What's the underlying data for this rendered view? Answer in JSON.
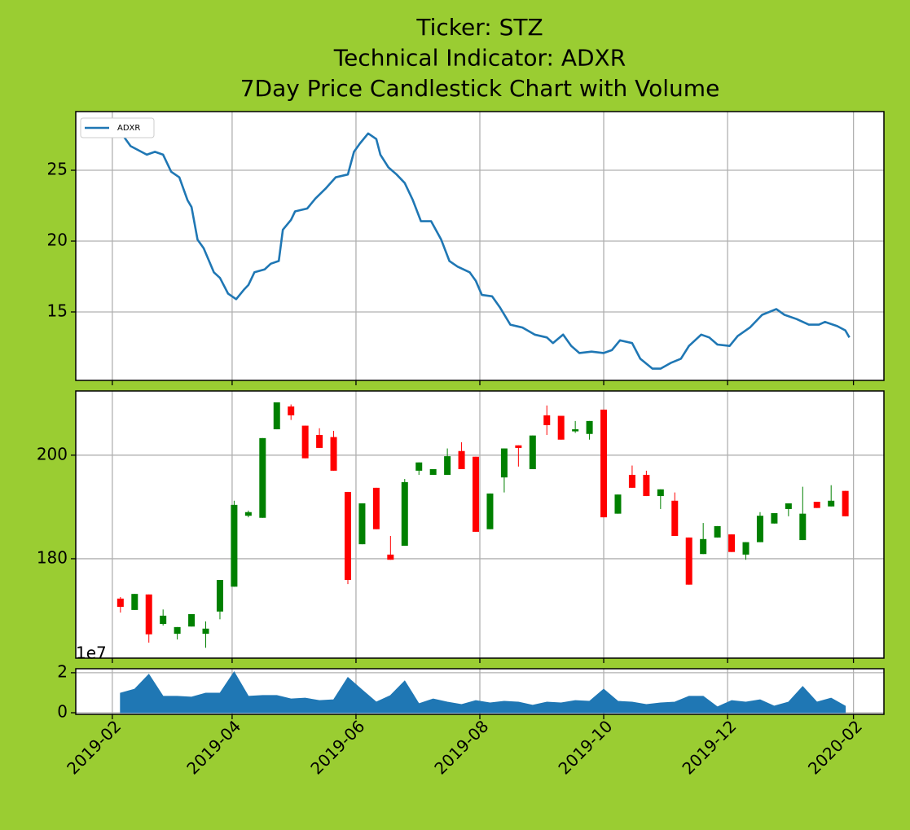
{
  "chart_data": [
    {
      "type": "line",
      "title": [
        "Ticker: STZ",
        "Technical Indicator: ADXR",
        "7Day Price Candlestick Chart with Volume"
      ],
      "x": [
        "2019-02-02",
        "2019-02-10",
        "2019-02-18",
        "2019-02-22",
        "2019-02-26",
        "2019-03-02",
        "2019-03-06",
        "2019-03-10",
        "2019-03-12",
        "2019-03-15",
        "2019-03-18",
        "2019-03-23",
        "2019-03-26",
        "2019-03-30",
        "2019-04-03",
        "2019-04-07",
        "2019-04-09",
        "2019-04-12",
        "2019-04-17",
        "2019-04-20",
        "2019-04-24",
        "2019-04-26",
        "2019-04-30",
        "2019-05-02",
        "2019-05-08",
        "2019-05-12",
        "2019-05-17",
        "2019-05-22",
        "2019-05-28",
        "2019-05-31",
        "2019-06-03",
        "2019-06-07",
        "2019-06-11",
        "2019-06-13",
        "2019-06-17",
        "2019-06-21",
        "2019-06-25",
        "2019-06-29",
        "2019-07-03",
        "2019-07-08",
        "2019-07-13",
        "2019-07-17",
        "2019-07-21",
        "2019-07-27",
        "2019-07-30",
        "2019-08-02",
        "2019-08-07",
        "2019-08-11",
        "2019-08-16",
        "2019-08-22",
        "2019-08-28",
        "2019-09-03",
        "2019-09-06",
        "2019-09-11",
        "2019-09-15",
        "2019-09-19",
        "2019-09-25",
        "2019-10-01",
        "2019-10-05",
        "2019-10-09",
        "2019-10-15",
        "2019-10-19",
        "2019-10-25",
        "2019-10-29",
        "2019-11-03",
        "2019-11-08",
        "2019-11-12",
        "2019-11-18",
        "2019-11-22",
        "2019-11-26",
        "2019-12-02",
        "2019-12-06",
        "2019-12-12",
        "2019-12-18",
        "2019-12-25",
        "2019-12-29",
        "2020-01-04",
        "2020-01-10",
        "2020-01-15",
        "2020-01-18",
        "2020-01-24",
        "2020-01-28",
        "2020-01-30"
      ],
      "series": [
        {
          "name": "ADXR",
          "color": "#1f77b4",
          "values": [
            28.3,
            26.7,
            26.1,
            26.3,
            26.1,
            24.9,
            24.5,
            22.9,
            22.4,
            20.1,
            19.5,
            17.8,
            17.4,
            16.3,
            15.9,
            16.6,
            16.9,
            17.8,
            18.0,
            18.4,
            18.6,
            20.8,
            21.5,
            22.1,
            22.3,
            23.0,
            23.7,
            24.5,
            24.7,
            26.3,
            26.9,
            27.6,
            27.2,
            26.1,
            25.2,
            24.7,
            24.1,
            22.9,
            21.4,
            21.4,
            20.1,
            18.6,
            18.2,
            17.8,
            17.2,
            16.2,
            16.1,
            15.3,
            14.1,
            13.9,
            13.4,
            13.2,
            12.8,
            13.4,
            12.6,
            12.1,
            12.2,
            12.1,
            12.3,
            13.0,
            12.8,
            11.7,
            11.0,
            11.0,
            11.4,
            11.7,
            12.6,
            13.4,
            13.2,
            12.7,
            12.6,
            13.3,
            13.9,
            14.8,
            15.2,
            14.8,
            14.5,
            14.1,
            14.1,
            14.3,
            14.0,
            13.7,
            13.2
          ]
        }
      ],
      "xlim": [
        "2019-01-14",
        "2020-02-16"
      ],
      "ylim": [
        10.17,
        29.14
      ],
      "yticks": [
        15,
        20,
        25
      ],
      "grid": true,
      "legend": "upper left"
    },
    {
      "type": "candlestick",
      "x": [
        "2019-02-05",
        "2019-02-12",
        "2019-02-19",
        "2019-02-26",
        "2019-03-05",
        "2019-03-12",
        "2019-03-19",
        "2019-03-26",
        "2019-04-02",
        "2019-04-09",
        "2019-04-16",
        "2019-04-23",
        "2019-04-30",
        "2019-05-07",
        "2019-05-14",
        "2019-05-21",
        "2019-05-28",
        "2019-06-04",
        "2019-06-11",
        "2019-06-18",
        "2019-06-25",
        "2019-07-02",
        "2019-07-09",
        "2019-07-16",
        "2019-07-23",
        "2019-07-30",
        "2019-08-06",
        "2019-08-13",
        "2019-08-20",
        "2019-08-27",
        "2019-09-03",
        "2019-09-10",
        "2019-09-17",
        "2019-09-24",
        "2019-10-01",
        "2019-10-08",
        "2019-10-15",
        "2019-10-22",
        "2019-10-29",
        "2019-11-05",
        "2019-11-12",
        "2019-11-19",
        "2019-11-26",
        "2019-12-03",
        "2019-12-10",
        "2019-12-17",
        "2019-12-24",
        "2019-12-31",
        "2020-01-07",
        "2020-01-14",
        "2020-01-21",
        "2020-01-28"
      ],
      "open": [
        172.3,
        170.1,
        173.1,
        167.4,
        165.5,
        166.9,
        165.5,
        169.8,
        174.6,
        188.3,
        187.9,
        205.0,
        209.4,
        205.7,
        203.9,
        203.5,
        192.9,
        182.8,
        193.7,
        180.8,
        182.5,
        197.0,
        196.2,
        196.2,
        200.8,
        199.7,
        185.7,
        195.7,
        201.9,
        197.3,
        207.7,
        207.6,
        204.6,
        204.1,
        208.8,
        188.7,
        196.2,
        196.2,
        192.1,
        191.2,
        184.1,
        180.9,
        184.1,
        184.7,
        180.8,
        183.2,
        186.8,
        189.6,
        183.6,
        191.0,
        190.1,
        193.1
      ],
      "high": [
        172.6,
        173.2,
        173.1,
        170.2,
        166.8,
        169.3,
        167.9,
        175.9,
        191.2,
        189.3,
        203.3,
        210.2,
        209.8,
        205.7,
        205.2,
        204.7,
        192.9,
        190.7,
        193.7,
        184.4,
        195.4,
        198.6,
        197.3,
        201.3,
        202.5,
        199.7,
        192.6,
        201.3,
        201.9,
        203.8,
        209.6,
        207.6,
        206.6,
        206.6,
        208.8,
        192.4,
        198.0,
        197.0,
        193.4,
        192.8,
        184.1,
        186.9,
        186.3,
        184.7,
        183.2,
        189.0,
        188.8,
        190.7,
        193.9,
        191.0,
        194.2,
        193.1
      ],
      "low": [
        169.6,
        170.1,
        163.8,
        167.1,
        164.4,
        166.9,
        162.8,
        168.3,
        174.6,
        188.0,
        187.9,
        205.0,
        206.8,
        199.4,
        201.4,
        197.0,
        175.1,
        182.8,
        185.7,
        179.8,
        182.5,
        196.2,
        196.2,
        196.2,
        197.3,
        185.2,
        185.7,
        192.8,
        197.8,
        197.3,
        203.9,
        203.0,
        204.3,
        203.0,
        188.0,
        188.7,
        193.7,
        192.1,
        189.6,
        184.4,
        175.0,
        180.9,
        184.1,
        181.3,
        179.8,
        183.2,
        186.8,
        188.2,
        183.6,
        189.8,
        190.1,
        188.2
      ],
      "close": [
        170.7,
        173.2,
        165.4,
        169.0,
        166.8,
        169.3,
        166.5,
        175.9,
        190.4,
        189.0,
        203.3,
        210.2,
        207.7,
        199.4,
        201.4,
        197.0,
        175.9,
        190.7,
        185.7,
        179.8,
        194.8,
        198.6,
        197.3,
        199.8,
        197.3,
        185.2,
        192.6,
        201.3,
        201.4,
        203.8,
        205.8,
        203.0,
        205.0,
        206.6,
        188.0,
        192.4,
        193.7,
        192.1,
        193.4,
        184.4,
        175.0,
        183.8,
        186.3,
        181.3,
        183.2,
        188.3,
        188.8,
        190.7,
        188.7,
        189.8,
        191.2,
        188.2
      ],
      "up_color": "green",
      "down_color": "red",
      "xlim": [
        "2019-01-14",
        "2020-02-16"
      ],
      "ylim": [
        160.8,
        212.4
      ],
      "yticks": [
        180,
        200
      ],
      "grid": true
    },
    {
      "type": "area",
      "x": [
        "2019-02-05",
        "2019-02-12",
        "2019-02-19",
        "2019-02-26",
        "2019-03-05",
        "2019-03-12",
        "2019-03-19",
        "2019-03-26",
        "2019-04-02",
        "2019-04-09",
        "2019-04-16",
        "2019-04-23",
        "2019-04-30",
        "2019-05-07",
        "2019-05-14",
        "2019-05-21",
        "2019-05-28",
        "2019-06-04",
        "2019-06-11",
        "2019-06-18",
        "2019-06-25",
        "2019-07-02",
        "2019-07-09",
        "2019-07-16",
        "2019-07-23",
        "2019-07-30",
        "2019-08-06",
        "2019-08-13",
        "2019-08-20",
        "2019-08-27",
        "2019-09-03",
        "2019-09-10",
        "2019-09-17",
        "2019-09-24",
        "2019-10-01",
        "2019-10-08",
        "2019-10-15",
        "2019-10-22",
        "2019-10-29",
        "2019-11-05",
        "2019-11-12",
        "2019-11-19",
        "2019-11-26",
        "2019-12-03",
        "2019-12-10",
        "2019-12-17",
        "2019-12-24",
        "2019-12-31",
        "2020-01-07",
        "2020-01-14",
        "2020-01-21",
        "2020-01-28"
      ],
      "values": [
        0.98,
        1.18,
        1.92,
        0.82,
        0.82,
        0.78,
        0.98,
        0.98,
        2.04,
        0.82,
        0.86,
        0.86,
        0.69,
        0.73,
        0.61,
        0.65,
        1.76,
        1.14,
        0.53,
        0.86,
        1.59,
        0.45,
        0.69,
        0.53,
        0.41,
        0.61,
        0.49,
        0.57,
        0.53,
        0.37,
        0.53,
        0.49,
        0.61,
        0.57,
        1.18,
        0.57,
        0.53,
        0.41,
        0.49,
        0.53,
        0.82,
        0.82,
        0.29,
        0.61,
        0.53,
        0.65,
        0.33,
        0.53,
        1.31,
        0.53,
        0.73,
        0.33
      ],
      "color": "#1f77b4",
      "offset_text": "1e7",
      "xlim": [
        "2019-01-14",
        "2020-02-16"
      ],
      "xticks": [
        "2019-02",
        "2019-04",
        "2019-06",
        "2019-08",
        "2019-10",
        "2019-12",
        "2020-02"
      ],
      "ylim": [
        -0.08,
        2.2
      ],
      "yticks": [
        0,
        2
      ],
      "grid": true
    }
  ]
}
